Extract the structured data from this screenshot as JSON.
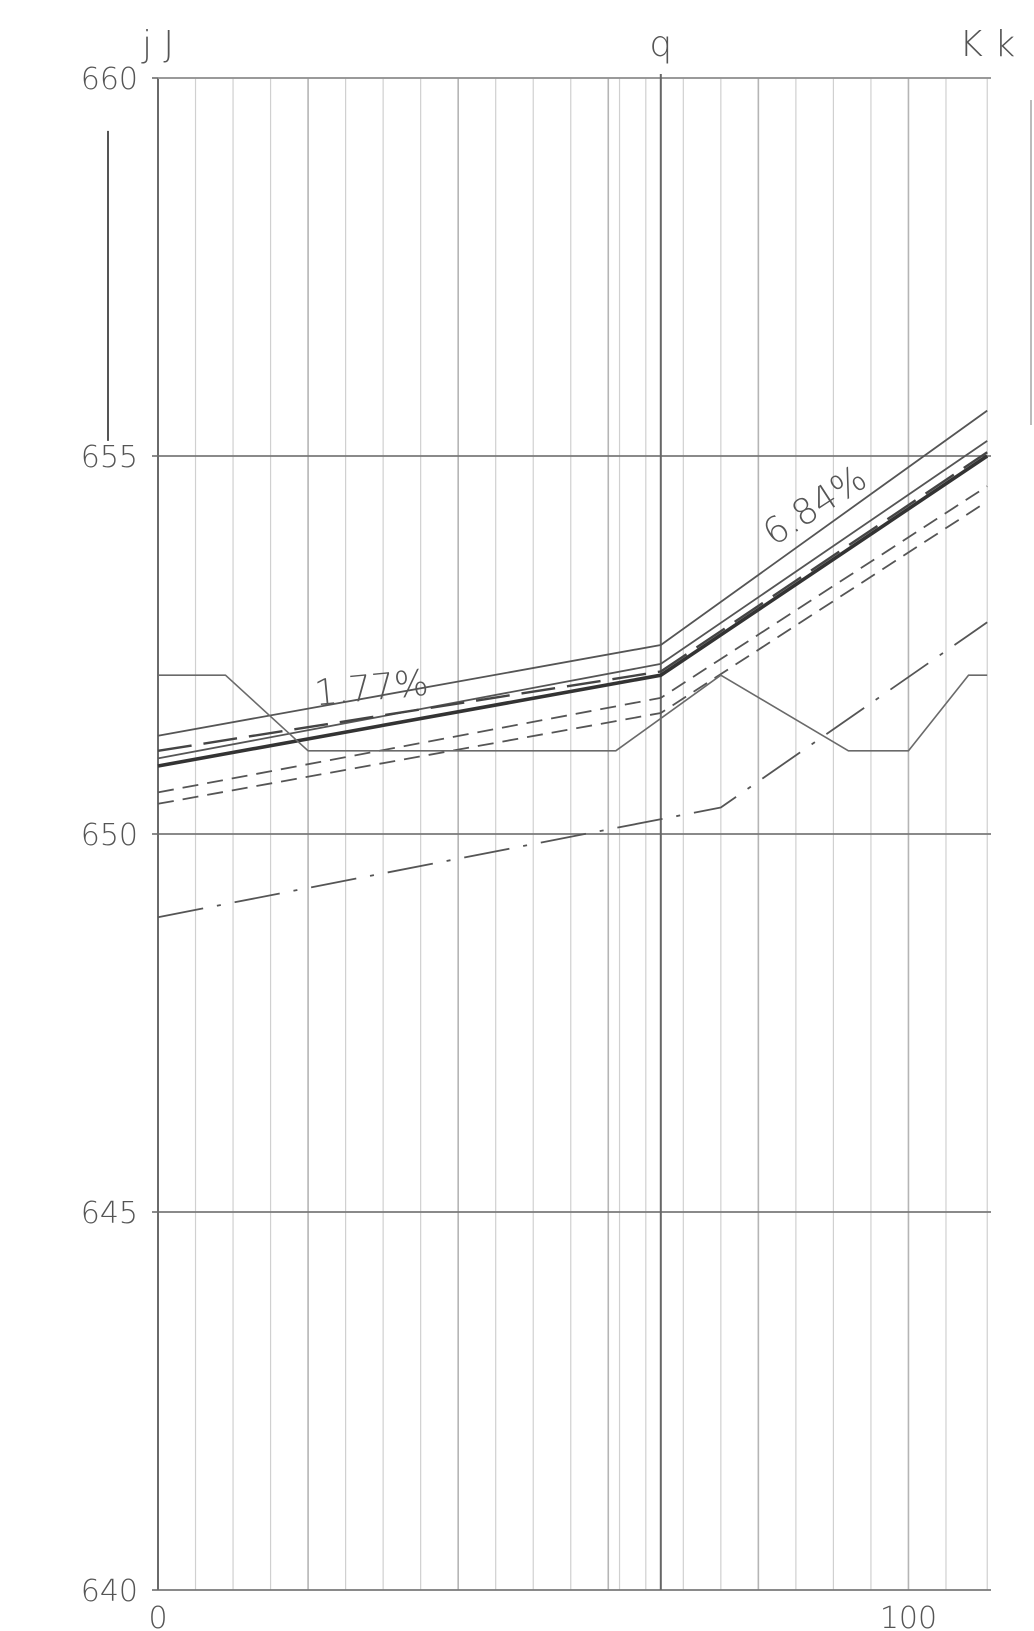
{
  "chart_data": {
    "type": "line",
    "title": "",
    "xlabel": "",
    "ylabel": "",
    "xlim": [
      0,
      111
    ],
    "ylim": [
      640,
      660
    ],
    "x_ticks": [
      {
        "value": 0,
        "label": "0"
      },
      {
        "value": 100,
        "label": "100"
      }
    ],
    "y_ticks": [
      {
        "value": 640,
        "label": "640"
      },
      {
        "value": 645,
        "label": "645"
      },
      {
        "value": 650,
        "label": "650"
      },
      {
        "value": 655,
        "label": "655"
      },
      {
        "value": 660,
        "label": "660"
      }
    ],
    "grid": true,
    "vertical_gridlines": [
      0,
      5,
      10,
      15,
      20,
      25,
      30,
      35,
      40,
      45,
      50,
      55,
      60,
      61.5,
      65,
      70,
      75,
      80,
      85,
      90,
      95,
      100,
      105,
      110.5
    ],
    "major_vertical_gridlines": [
      0,
      20,
      40,
      60,
      80,
      100
    ],
    "top_markers": [
      {
        "value": 0,
        "label": "j J"
      },
      {
        "value": 67,
        "label": "q"
      },
      {
        "value": 110.5,
        "label": "K k"
      }
    ],
    "vertical_reference": 67,
    "series": [
      {
        "style": "solid",
        "points": [
          [
            0,
            651.3
          ],
          [
            67,
            652.5
          ],
          [
            110.5,
            655.6
          ]
        ]
      },
      {
        "style": "solid",
        "points": [
          [
            0,
            651.0
          ],
          [
            67,
            652.25
          ],
          [
            110.5,
            655.2
          ]
        ]
      },
      {
        "style": "solid-bold",
        "points": [
          [
            0,
            650.9
          ],
          [
            67,
            652.1
          ],
          [
            110.5,
            655.0
          ]
        ]
      },
      {
        "style": "long-dash",
        "points": [
          [
            0,
            651.1
          ],
          [
            67,
            652.15
          ],
          [
            110.5,
            655.05
          ]
        ]
      },
      {
        "style": "dashed",
        "points": [
          [
            0,
            650.55
          ],
          [
            67,
            651.8
          ],
          [
            110.5,
            654.6
          ]
        ]
      },
      {
        "style": "dashed",
        "points": [
          [
            0,
            650.4
          ],
          [
            67,
            651.6
          ],
          [
            110.5,
            654.4
          ]
        ]
      },
      {
        "style": "solid-thin",
        "points": [
          [
            0,
            652.1
          ],
          [
            9,
            652.1
          ],
          [
            20,
            651.1
          ],
          [
            61,
            651.1
          ],
          [
            75,
            652.1
          ],
          [
            92,
            651.1
          ],
          [
            100,
            651.1
          ],
          [
            108,
            652.1
          ],
          [
            110.5,
            652.1
          ]
        ]
      },
      {
        "style": "dash-dot",
        "points": [
          [
            0,
            648.9
          ],
          [
            75,
            650.35
          ],
          [
            110.5,
            652.8
          ]
        ]
      }
    ],
    "annotations": [
      {
        "text": "1.77%",
        "x": 21,
        "y": 651.7
      },
      {
        "text": "6.84%",
        "x": 82,
        "y": 653.8
      }
    ]
  }
}
